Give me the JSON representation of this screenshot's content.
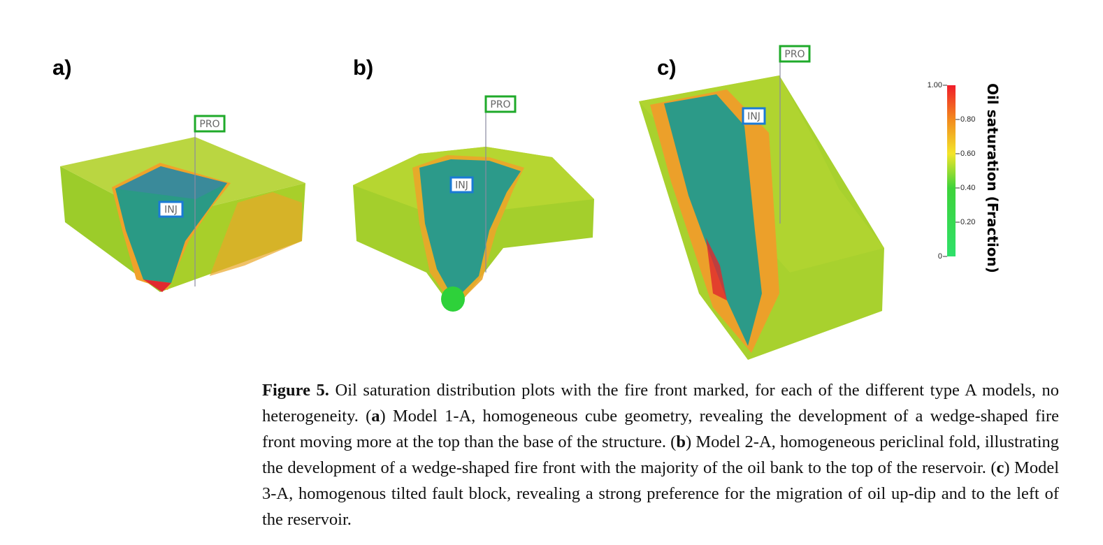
{
  "panels": [
    {
      "label": "a)",
      "wells": [
        "PRO",
        "INJ"
      ]
    },
    {
      "label": "b)",
      "wells": [
        "PRO",
        "INJ"
      ]
    },
    {
      "label": "c)",
      "wells": [
        "PRO",
        "INJ"
      ]
    }
  ],
  "colorbar": {
    "title": "Oil saturation (Fraction)",
    "lim": [
      0,
      1
    ],
    "ticks": [
      {
        "value": 1,
        "label": "1.00"
      },
      {
        "value": 0.8,
        "label": "0.80"
      },
      {
        "value": 0.6,
        "label": "0.60"
      },
      {
        "value": 0.4,
        "label": "0.40"
      },
      {
        "value": 0.2,
        "label": "0.20"
      },
      0
    ]
  },
  "caption": {
    "label": "Figure 5.",
    "parts": [
      " Oil saturation distribution plots with the fire front marked, for each of the different type A models, no heterogeneity. (",
      ") Model 1-A, homogeneous cube geometry, revealing the development of a wedge-shaped fire front moving more at the top than the base of the structure. (",
      ") Model 2-A, homogeneous periclinal fold, illustrating the development of a wedge-shaped fire front with the majority of the oil bank to the top of the reservoir. (",
      ") Model 3-A, homogenous tilted fault block, revealing a strong preference for the migration of oil up-dip and to the left of the reservoir."
    ],
    "keys": [
      "a",
      "b",
      "c"
    ]
  }
}
